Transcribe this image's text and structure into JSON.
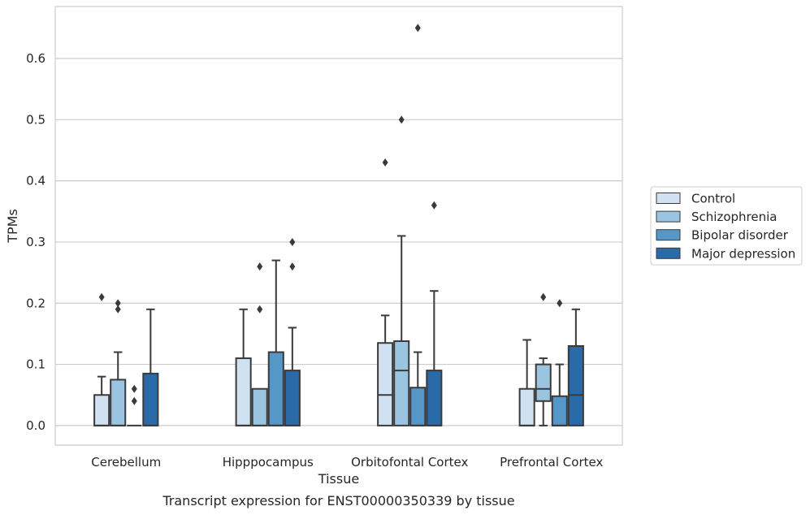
{
  "chart_data": {
    "type": "box",
    "caption": "Transcript expression for ENST00000350339 by tissue",
    "xlabel": "Tissue",
    "ylabel": "TPMs",
    "ylim": [
      -0.032,
      0.685
    ],
    "yticks": [
      "0.0",
      "0.1",
      "0.2",
      "0.3",
      "0.4",
      "0.5",
      "0.6"
    ],
    "grid": true,
    "legend_position": "right",
    "categories": [
      "Cerebellum",
      "Hipppocampus",
      "Orbitofontal Cortex",
      "Prefrontal Cortex"
    ],
    "series": [
      {
        "name": "Control",
        "color": "#d0e1f2",
        "boxes": [
          {
            "q1": 0.0,
            "median": 0.0,
            "q3": 0.05,
            "whisker_low": 0.0,
            "whisker_high": 0.08,
            "outliers": [
              0.21
            ]
          },
          {
            "q1": 0.0,
            "median": 0.0,
            "q3": 0.11,
            "whisker_low": 0.0,
            "whisker_high": 0.19,
            "outliers": []
          },
          {
            "q1": 0.0,
            "median": 0.05,
            "q3": 0.135,
            "whisker_low": 0.0,
            "whisker_high": 0.18,
            "outliers": [
              0.43
            ]
          },
          {
            "q1": 0.0,
            "median": 0.0,
            "q3": 0.06,
            "whisker_low": 0.0,
            "whisker_high": 0.14,
            "outliers": []
          }
        ]
      },
      {
        "name": "Schizophrenia",
        "color": "#9ac4e0",
        "boxes": [
          {
            "q1": 0.0,
            "median": 0.0,
            "q3": 0.075,
            "whisker_low": 0.0,
            "whisker_high": 0.12,
            "outliers": [
              0.19,
              0.2
            ]
          },
          {
            "q1": 0.0,
            "median": 0.0,
            "q3": 0.06,
            "whisker_low": 0.0,
            "whisker_high": 0.06,
            "outliers": [
              0.19,
              0.26
            ]
          },
          {
            "q1": 0.0,
            "median": 0.09,
            "q3": 0.138,
            "whisker_low": 0.0,
            "whisker_high": 0.31,
            "outliers": [
              0.5
            ]
          },
          {
            "q1": 0.04,
            "median": 0.06,
            "q3": 0.1,
            "whisker_low": 0.0,
            "whisker_high": 0.11,
            "outliers": [
              0.21
            ]
          }
        ]
      },
      {
        "name": "Bipolar disorder",
        "color": "#5597c6",
        "boxes": [
          {
            "q1": 0.0,
            "median": 0.0,
            "q3": 0.0,
            "whisker_low": 0.0,
            "whisker_high": 0.0,
            "outliers": [
              0.04,
              0.06
            ]
          },
          {
            "q1": 0.0,
            "median": 0.0,
            "q3": 0.12,
            "whisker_low": 0.0,
            "whisker_high": 0.27,
            "outliers": []
          },
          {
            "q1": 0.0,
            "median": 0.0,
            "q3": 0.062,
            "whisker_low": 0.0,
            "whisker_high": 0.12,
            "outliers": [
              0.65
            ]
          },
          {
            "q1": 0.0,
            "median": 0.0,
            "q3": 0.048,
            "whisker_low": 0.0,
            "whisker_high": 0.1,
            "outliers": [
              0.2
            ]
          }
        ]
      },
      {
        "name": "Major depression",
        "color": "#2a6aa8",
        "boxes": [
          {
            "q1": 0.0,
            "median": 0.0,
            "q3": 0.085,
            "whisker_low": 0.0,
            "whisker_high": 0.19,
            "outliers": []
          },
          {
            "q1": 0.0,
            "median": 0.0,
            "q3": 0.09,
            "whisker_low": 0.0,
            "whisker_high": 0.16,
            "outliers": [
              0.26,
              0.3
            ]
          },
          {
            "q1": 0.0,
            "median": 0.0,
            "q3": 0.09,
            "whisker_low": 0.0,
            "whisker_high": 0.22,
            "outliers": [
              0.36
            ]
          },
          {
            "q1": 0.0,
            "median": 0.05,
            "q3": 0.13,
            "whisker_low": 0.0,
            "whisker_high": 0.19,
            "outliers": []
          }
        ]
      }
    ]
  }
}
